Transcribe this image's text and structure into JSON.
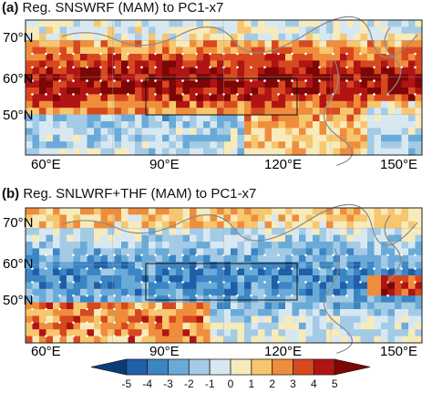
{
  "panels": [
    {
      "id": "a",
      "label": "(a)",
      "title": "Reg. SNSWRF (MAM)  to  PC1-x7",
      "lat_ticks": [
        "70°N",
        "60°N",
        "50°N"
      ],
      "lon_ticks": [
        "60°E",
        "90°E",
        "120°E",
        "150°E"
      ]
    },
    {
      "id": "b",
      "label": "(b)",
      "title": "Reg. SNLWRF+THF (MAM)  to  PC1-x7",
      "lat_ticks": [
        "70°N",
        "60°N",
        "50°N"
      ],
      "lon_ticks": [
        "60°E",
        "90°E",
        "120°E",
        "150°E"
      ]
    }
  ],
  "colorbar": {
    "ticks": [
      "-5",
      "-4",
      "-3",
      "-2",
      "-1",
      "0",
      "1",
      "2",
      "3",
      "4",
      "5"
    ],
    "colors": [
      "#0b3a78",
      "#1f5fa8",
      "#3b85c4",
      "#6aaad8",
      "#a4cbe6",
      "#d8e8f1",
      "#f7ebbb",
      "#f7c66e",
      "#ef8d3c",
      "#d8481f",
      "#b01414",
      "#7d0606"
    ]
  }
}
